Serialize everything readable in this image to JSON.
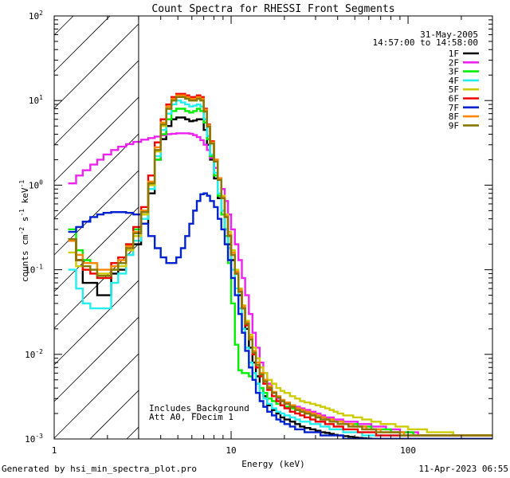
{
  "chart_data": {
    "type": "line",
    "title": "Count Spectra for RHESSI Front Segments",
    "xlabel": "Energy (keV)",
    "ylabel": "counts cm",
    "ylabel_sup1": "-2",
    "ylabel_mid": " s",
    "ylabel_sup2": "-1",
    "ylabel_unit": " keV",
    "ylabel_sup3": "-1",
    "xscale": "log",
    "yscale": "log",
    "xlim": [
      1,
      300
    ],
    "ylim": [
      0.001,
      100
    ],
    "x_tick_labels": [
      {
        "value": 1,
        "label": "1"
      },
      {
        "value": 10,
        "label": "10"
      },
      {
        "value": 100,
        "label": "100"
      }
    ],
    "y_tick_labels": [
      {
        "value": 100,
        "base": "10",
        "exp": "2"
      },
      {
        "value": 10,
        "base": "10",
        "exp": "1"
      },
      {
        "value": 1,
        "base": "10",
        "exp": "0"
      },
      {
        "value": 0.1,
        "base": "10",
        "exp": "-1"
      },
      {
        "value": 0.01,
        "base": "10",
        "exp": "-2"
      },
      {
        "value": 0.001,
        "base": "10",
        "exp": "-3"
      }
    ],
    "date": "31-May-2005",
    "time_range": "14:57:00 to 14:58:00",
    "hatched_region_keV": [
      1,
      3
    ],
    "annotation_lines": [
      "Includes_Background",
      "Att A0, FDecim 1"
    ],
    "series": [
      {
        "name": "1F",
        "color": "#000000"
      },
      {
        "name": "2F",
        "color": "#ee22ee"
      },
      {
        "name": "3F",
        "color": "#00ee00"
      },
      {
        "name": "4F",
        "color": "#22eeee"
      },
      {
        "name": "5F",
        "color": "#cccc00"
      },
      {
        "name": "6F",
        "color": "#ee0000"
      },
      {
        "name": "7F",
        "color": "#0022cc"
      },
      {
        "name": "8F",
        "color": "#ff8800"
      },
      {
        "name": "9F",
        "color": "#887700"
      }
    ],
    "energy_bins_keV": [
      1.2,
      1.33,
      1.45,
      1.6,
      1.75,
      1.9,
      2.1,
      2.3,
      2.55,
      2.8,
      3.1,
      3.4,
      3.7,
      4.0,
      4.3,
      4.6,
      4.9,
      5.2,
      5.5,
      5.8,
      6.1,
      6.4,
      6.7,
      7.0,
      7.3,
      7.6,
      8.0,
      8.4,
      8.8,
      9.2,
      9.6,
      10.0,
      10.5,
      11.0,
      11.5,
      12.0,
      12.6,
      13.2,
      13.8,
      14.5,
      15.2,
      16.0,
      17.0,
      18.0,
      19.0,
      20.0,
      21.5,
      23.0,
      24.5,
      26.0,
      28.0,
      30.0,
      32.0,
      34.0,
      36.0,
      38.0,
      40.0,
      43.0,
      46.0,
      49.0,
      52.0,
      55.0,
      58.0,
      62.0,
      66.0,
      70.0,
      75.0,
      80.0,
      85.0,
      90.0,
      95.0,
      100.0,
      107.0,
      114.0,
      121.0,
      128.0,
      136.0,
      144.0,
      152.0,
      160.0,
      170.0,
      180.0,
      190.0,
      200.0,
      212.0,
      225.0,
      240.0,
      255.0,
      270.0,
      285.0
    ],
    "series_values": {
      "1F": [
        0.22,
        0.13,
        0.07,
        0.07,
        0.05,
        0.05,
        0.09,
        0.1,
        0.15,
        0.2,
        0.35,
        0.8,
        2.0,
        3.5,
        5.0,
        6.0,
        6.3,
        6.3,
        6.0,
        5.7,
        5.8,
        6.0,
        6.0,
        4.5,
        3.0,
        2.0,
        1.2,
        0.7,
        0.45,
        0.3,
        0.2,
        0.13,
        0.09,
        0.05,
        0.035,
        0.02,
        0.012,
        0.008,
        0.0055,
        0.004,
        0.0032,
        0.0025,
        0.0022,
        0.002,
        0.0018,
        0.0017,
        0.0016,
        0.0015,
        0.0014,
        0.00135,
        0.0013,
        0.00125,
        0.0012,
        0.00118,
        0.00115,
        0.00112,
        0.0011,
        0.00108,
        0.00106,
        0.00104,
        0.00103,
        0.00102,
        0.00101,
        0.001,
        0.001,
        0.001,
        0.001,
        0.001,
        0.001,
        0.001,
        0.001,
        0.001,
        0.001,
        0.001,
        0.001,
        0.001,
        0.001,
        0.001,
        0.001,
        0.001,
        0.001,
        0.001,
        0.001,
        0.001,
        0.001,
        0.001,
        0.001,
        0.001,
        0.001,
        0.001
      ],
      "2F": [
        1.05,
        1.3,
        1.5,
        1.75,
        2.0,
        2.3,
        2.6,
        2.85,
        3.05,
        3.25,
        3.45,
        3.6,
        3.75,
        3.9,
        4.0,
        4.05,
        4.1,
        4.1,
        4.1,
        4.05,
        3.9,
        3.7,
        3.4,
        3.0,
        2.6,
        2.1,
        1.6,
        1.2,
        0.9,
        0.65,
        0.45,
        0.3,
        0.2,
        0.13,
        0.08,
        0.05,
        0.03,
        0.018,
        0.012,
        0.008,
        0.006,
        0.0045,
        0.0035,
        0.003,
        0.0028,
        0.0026,
        0.0025,
        0.0024,
        0.0023,
        0.0022,
        0.0021,
        0.002,
        0.0019,
        0.0018,
        0.0018,
        0.0017,
        0.0017,
        0.0016,
        0.0016,
        0.0016,
        0.0015,
        0.0015,
        0.0015,
        0.0014,
        0.0014,
        0.0014,
        0.0013,
        0.0013,
        0.0013,
        0.0012,
        0.0012,
        0.0012,
        0.0012,
        0.0011,
        0.0011,
        0.0011,
        0.0011,
        0.0011,
        0.0011,
        0.0011,
        0.0011,
        0.0011,
        0.0011,
        0.0011,
        0.0011,
        0.0011,
        0.0011,
        0.0011,
        0.0011,
        0.0011
      ],
      "3F": [
        0.3,
        0.17,
        0.13,
        0.12,
        0.08,
        0.08,
        0.1,
        0.12,
        0.2,
        0.3,
        0.45,
        0.9,
        2.0,
        4.0,
        6.0,
        7.5,
        8.0,
        8.0,
        7.5,
        7.2,
        7.5,
        8.0,
        7.5,
        5.5,
        3.5,
        2.2,
        1.3,
        0.75,
        0.45,
        0.25,
        0.12,
        0.04,
        0.013,
        0.0065,
        0.006,
        0.006,
        0.0055,
        0.005,
        0.0045,
        0.004,
        0.0035,
        0.003,
        0.0028,
        0.0026,
        0.0025,
        0.0024,
        0.0023,
        0.0022,
        0.0021,
        0.002,
        0.0019,
        0.0018,
        0.0018,
        0.0017,
        0.0017,
        0.0016,
        0.0016,
        0.0015,
        0.0015,
        0.0015,
        0.0014,
        0.0014,
        0.0014,
        0.0013,
        0.0013,
        0.0013,
        0.0013,
        0.0012,
        0.0012,
        0.0012,
        0.0012,
        0.0012,
        0.0011,
        0.0011,
        0.0011,
        0.0011,
        0.0011,
        0.0011,
        0.0011,
        0.0011,
        0.0011,
        0.0011,
        0.0011,
        0.0011,
        0.0011,
        0.0011,
        0.0011,
        0.0011,
        0.0011,
        0.0011
      ],
      "4F": [
        0.1,
        0.06,
        0.04,
        0.035,
        0.035,
        0.035,
        0.07,
        0.09,
        0.15,
        0.22,
        0.4,
        0.9,
        2.2,
        4.5,
        7.0,
        9.0,
        10.0,
        9.5,
        9.0,
        8.5,
        8.7,
        9.0,
        8.5,
        6.0,
        3.8,
        2.3,
        1.4,
        0.8,
        0.5,
        0.3,
        0.18,
        0.1,
        0.06,
        0.035,
        0.02,
        0.012,
        0.008,
        0.006,
        0.0045,
        0.0035,
        0.003,
        0.0026,
        0.0023,
        0.0021,
        0.002,
        0.0019,
        0.0018,
        0.0017,
        0.0016,
        0.0016,
        0.0015,
        0.0015,
        0.0014,
        0.0014,
        0.0013,
        0.0013,
        0.0013,
        0.0012,
        0.0012,
        0.0012,
        0.0012,
        0.0011,
        0.0011,
        0.0011,
        0.0011,
        0.0011,
        0.0011,
        0.0011,
        0.0011,
        0.0011,
        0.0011,
        0.0011,
        0.0011,
        0.0011,
        0.0011,
        0.0011,
        0.0011,
        0.0011,
        0.0011,
        0.0011,
        0.0011,
        0.0011,
        0.0011,
        0.0011,
        0.0011,
        0.0011,
        0.0011,
        0.0011,
        0.0011,
        0.0011
      ],
      "5F": [
        0.16,
        0.11,
        0.1,
        0.1,
        0.09,
        0.09,
        0.1,
        0.11,
        0.17,
        0.25,
        0.45,
        1.0,
        2.5,
        5.0,
        8.0,
        10.0,
        11.0,
        11.0,
        10.5,
        10.0,
        10.0,
        10.5,
        10.0,
        7.5,
        5.0,
        3.2,
        2.0,
        1.2,
        0.75,
        0.45,
        0.28,
        0.17,
        0.1,
        0.06,
        0.038,
        0.025,
        0.017,
        0.012,
        0.009,
        0.007,
        0.006,
        0.005,
        0.0045,
        0.004,
        0.0037,
        0.0035,
        0.0032,
        0.003,
        0.0028,
        0.0027,
        0.0026,
        0.0025,
        0.0024,
        0.0023,
        0.0022,
        0.0021,
        0.002,
        0.0019,
        0.0019,
        0.0018,
        0.0018,
        0.0017,
        0.0017,
        0.0016,
        0.0016,
        0.0015,
        0.0015,
        0.0015,
        0.0014,
        0.0014,
        0.0014,
        0.0013,
        0.0013,
        0.0013,
        0.0013,
        0.0012,
        0.0012,
        0.0012,
        0.0012,
        0.0012,
        0.0012,
        0.0011,
        0.0011,
        0.0011,
        0.0011,
        0.0011,
        0.0011,
        0.0011,
        0.0011,
        0.0011
      ],
      "6F": [
        0.23,
        0.13,
        0.1,
        0.09,
        0.08,
        0.08,
        0.12,
        0.14,
        0.2,
        0.32,
        0.55,
        1.3,
        3.2,
        6.0,
        9.0,
        11.0,
        12.0,
        12.0,
        11.5,
        11.0,
        11.0,
        11.5,
        11.0,
        8.0,
        5.2,
        3.3,
        2.0,
        1.2,
        0.7,
        0.42,
        0.25,
        0.15,
        0.09,
        0.055,
        0.035,
        0.022,
        0.015,
        0.01,
        0.007,
        0.0055,
        0.0045,
        0.0038,
        0.0032,
        0.0028,
        0.0025,
        0.0023,
        0.0021,
        0.002,
        0.0019,
        0.0018,
        0.0017,
        0.0016,
        0.0016,
        0.0015,
        0.0015,
        0.0014,
        0.0014,
        0.0013,
        0.0013,
        0.0013,
        0.0012,
        0.0012,
        0.0012,
        0.0012,
        0.0011,
        0.0011,
        0.0011,
        0.0011,
        0.0011,
        0.0011,
        0.0011,
        0.0011,
        0.0011,
        0.0011,
        0.0011,
        0.0011,
        0.0011,
        0.0011,
        0.0011,
        0.0011,
        0.0011,
        0.0011,
        0.0011,
        0.0011,
        0.0011,
        0.0011,
        0.0011,
        0.0011,
        0.0011,
        0.0011
      ],
      "7F": [
        0.28,
        0.32,
        0.37,
        0.42,
        0.45,
        0.47,
        0.48,
        0.48,
        0.47,
        0.45,
        0.35,
        0.25,
        0.18,
        0.14,
        0.12,
        0.12,
        0.14,
        0.18,
        0.25,
        0.35,
        0.5,
        0.65,
        0.78,
        0.8,
        0.75,
        0.65,
        0.55,
        0.4,
        0.3,
        0.2,
        0.13,
        0.08,
        0.05,
        0.03,
        0.018,
        0.011,
        0.007,
        0.005,
        0.0035,
        0.0028,
        0.0024,
        0.0021,
        0.0019,
        0.0017,
        0.0016,
        0.0015,
        0.0014,
        0.0013,
        0.0013,
        0.0012,
        0.0012,
        0.0012,
        0.0011,
        0.0011,
        0.0011,
        0.0011,
        0.0011,
        0.001,
        0.001,
        0.001,
        0.001,
        0.001,
        0.001,
        0.001,
        0.001,
        0.001,
        0.001,
        0.001,
        0.001,
        0.001,
        0.001,
        0.001,
        0.001,
        0.001,
        0.001,
        0.001,
        0.001,
        0.001,
        0.001,
        0.001,
        0.001,
        0.001,
        0.001,
        0.001,
        0.001,
        0.001,
        0.001,
        0.001,
        0.001,
        0.001
      ],
      "8F": [
        0.22,
        0.15,
        0.12,
        0.12,
        0.1,
        0.1,
        0.11,
        0.13,
        0.19,
        0.28,
        0.5,
        1.1,
        2.8,
        5.5,
        8.5,
        10.5,
        11.5,
        11.5,
        11.0,
        10.5,
        10.5,
        11.0,
        10.5,
        7.8,
        5.1,
        3.2,
        2.0,
        1.2,
        0.72,
        0.43,
        0.26,
        0.16,
        0.095,
        0.058,
        0.037,
        0.024,
        0.016,
        0.011,
        0.008,
        0.006,
        0.005,
        0.0042,
        0.0036,
        0.0032,
        0.0029,
        0.0027,
        0.0025,
        0.0023,
        0.0022,
        0.0021,
        0.002,
        0.0019,
        0.0018,
        0.0017,
        0.0017,
        0.0016,
        0.0016,
        0.0015,
        0.0015,
        0.0014,
        0.0014,
        0.0014,
        0.0013,
        0.0013,
        0.0013,
        0.0012,
        0.0012,
        0.0012,
        0.0012,
        0.0012,
        0.0011,
        0.0011,
        0.0011,
        0.0011,
        0.0011,
        0.0011,
        0.0011,
        0.0011,
        0.0011,
        0.0011,
        0.0011,
        0.0011,
        0.0011,
        0.0011,
        0.0011,
        0.0011,
        0.0011,
        0.0011,
        0.0011,
        0.0011
      ],
      "9F": [
        0.23,
        0.13,
        0.11,
        0.1,
        0.085,
        0.085,
        0.1,
        0.12,
        0.18,
        0.27,
        0.48,
        1.05,
        2.6,
        5.2,
        8.0,
        10.0,
        11.0,
        11.0,
        10.5,
        10.0,
        10.0,
        10.5,
        10.0,
        7.4,
        4.9,
        3.1,
        1.9,
        1.15,
        0.7,
        0.42,
        0.25,
        0.15,
        0.09,
        0.055,
        0.035,
        0.023,
        0.015,
        0.0105,
        0.0075,
        0.0058,
        0.0048,
        0.004,
        0.0035,
        0.0031,
        0.0028,
        0.0026,
        0.0024,
        0.0022,
        0.0021,
        0.002,
        0.0019,
        0.0018,
        0.0017,
        0.0017,
        0.0016,
        0.0016,
        0.0015,
        0.0015,
        0.0014,
        0.0014,
        0.0014,
        0.0013,
        0.0013,
        0.0013,
        0.0012,
        0.0012,
        0.0012,
        0.0012,
        0.0012,
        0.0011,
        0.0011,
        0.0011,
        0.0011,
        0.0011,
        0.0011,
        0.0011,
        0.0011,
        0.0011,
        0.0011,
        0.0011,
        0.0011,
        0.0011,
        0.0011,
        0.0011,
        0.0011,
        0.0011,
        0.0011,
        0.0011,
        0.0011,
        0.0011
      ]
    }
  },
  "footer": {
    "left": "Generated by hsi_min_spectra_plot.pro",
    "right": "11-Apr-2023 06:55"
  }
}
